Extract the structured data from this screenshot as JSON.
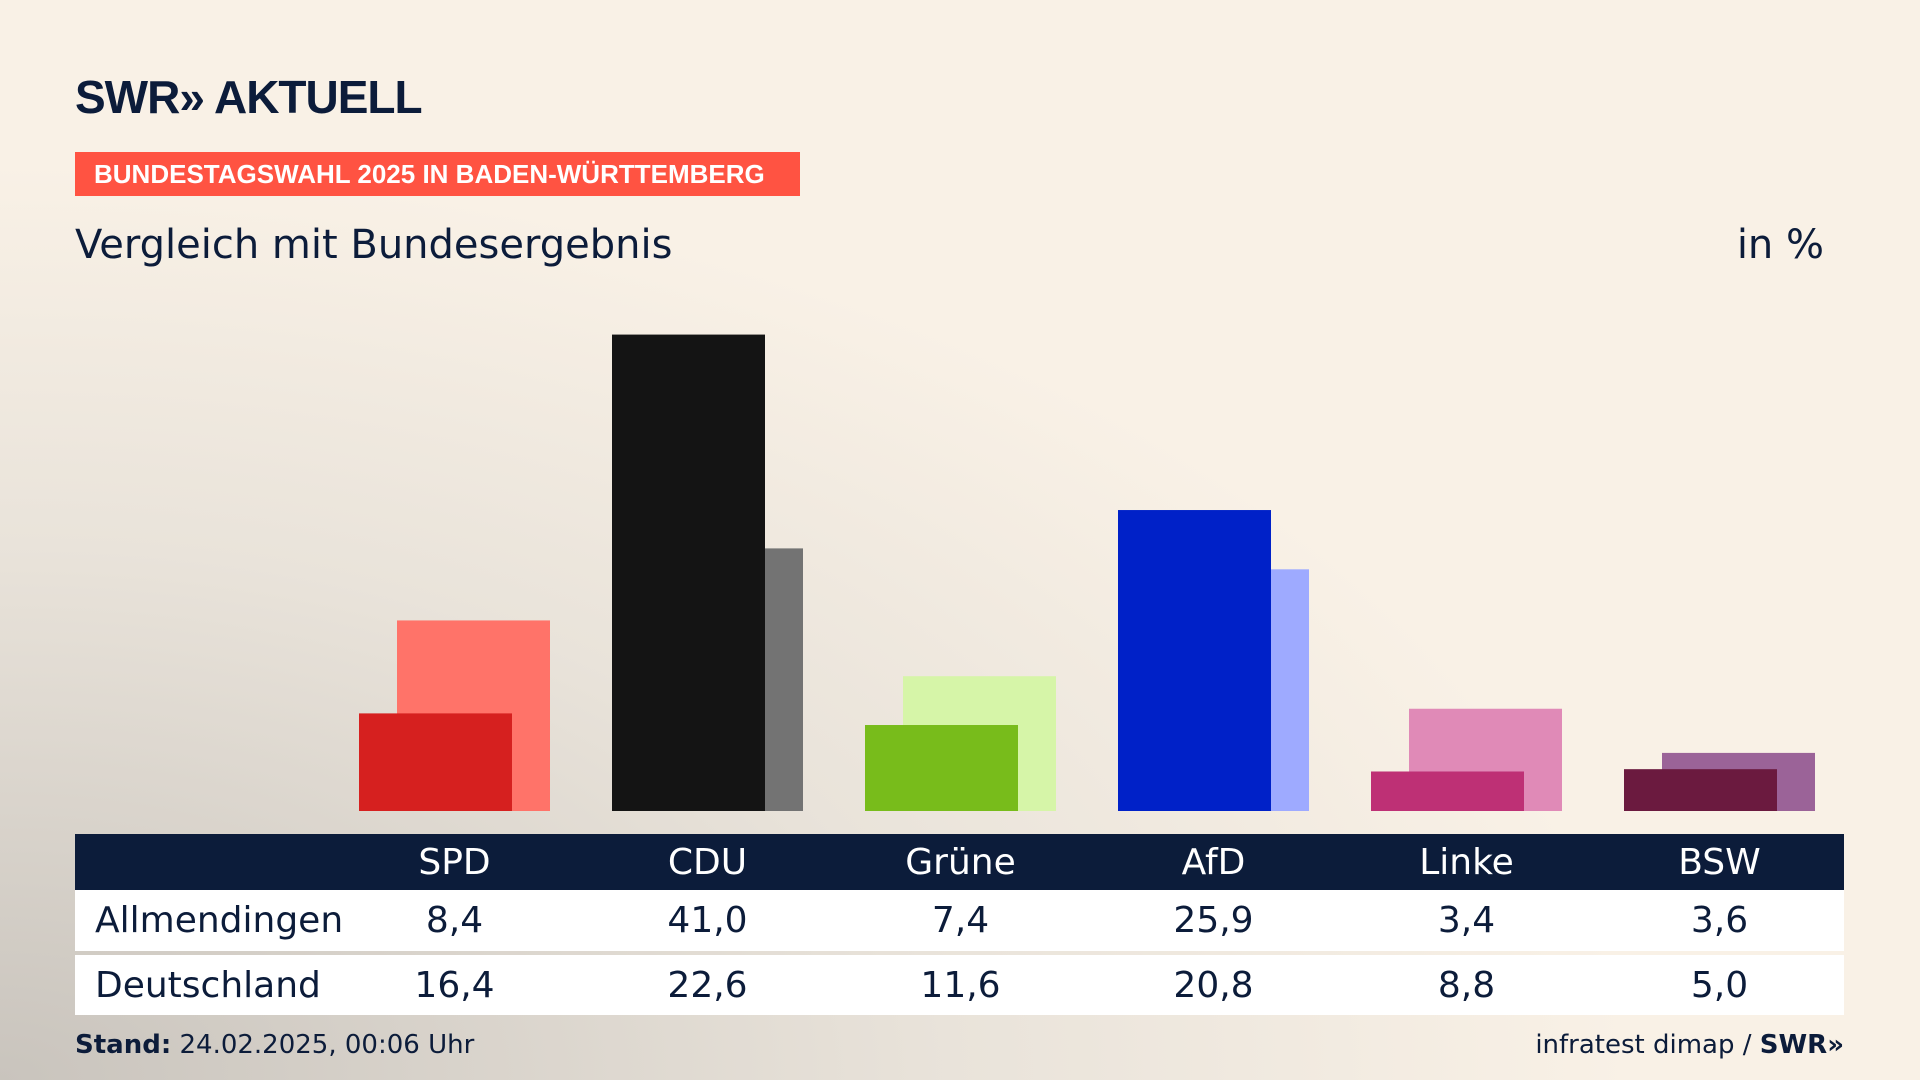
{
  "header": {
    "logo": "SWR» AKTUELL",
    "banner": "BUNDESTAGSWAHL 2025 IN BADEN-WÜRTTEMBERG",
    "subtitle": "Vergleich mit Bundesergebnis",
    "unit": "in %"
  },
  "chart_data": {
    "type": "bar",
    "categories": [
      "SPD",
      "CDU",
      "Grüne",
      "AfD",
      "Linke",
      "BSW"
    ],
    "series": [
      {
        "name": "Allmendingen",
        "values": [
          8.4,
          41.0,
          7.4,
          25.9,
          3.4,
          3.6
        ],
        "colors": [
          "#d6201f",
          "#141414",
          "#78bc1b",
          "#0021c8",
          "#be3075",
          "#6b1a3f"
        ]
      },
      {
        "name": "Deutschland",
        "values": [
          16.4,
          22.6,
          11.6,
          20.8,
          8.8,
          5.0
        ],
        "colors": [
          "#ff7369",
          "#737373",
          "#d6f5a8",
          "#9eaaff",
          "#e08ab7",
          "#9b6398"
        ]
      }
    ],
    "display": {
      "SPD": [
        "8,4",
        "16,4"
      ],
      "CDU": [
        "41,0",
        "22,6"
      ],
      "Grüne": [
        "7,4",
        "11,6"
      ],
      "AfD": [
        "25,9",
        "20,8"
      ],
      "Linke": [
        "3,4",
        "8,8"
      ],
      "BSW": [
        "3,6",
        "5,0"
      ]
    }
  },
  "table": {
    "rows": [
      {
        "label": "Allmendingen",
        "values": [
          "8,4",
          "41,0",
          "7,4",
          "25,9",
          "3,4",
          "3,6"
        ]
      },
      {
        "label": "Deutschland",
        "values": [
          "16,4",
          "22,6",
          "11,6",
          "20,8",
          "8,8",
          "5,0"
        ]
      }
    ]
  },
  "footer": {
    "stand_label": "Stand:",
    "stand_value": "24.02.2025, 00:06 Uhr",
    "source": "infratest dimap / ",
    "source_logo": "SWR»"
  },
  "colors": {
    "navy": "#0c1c3a",
    "banner": "#ff5342"
  }
}
